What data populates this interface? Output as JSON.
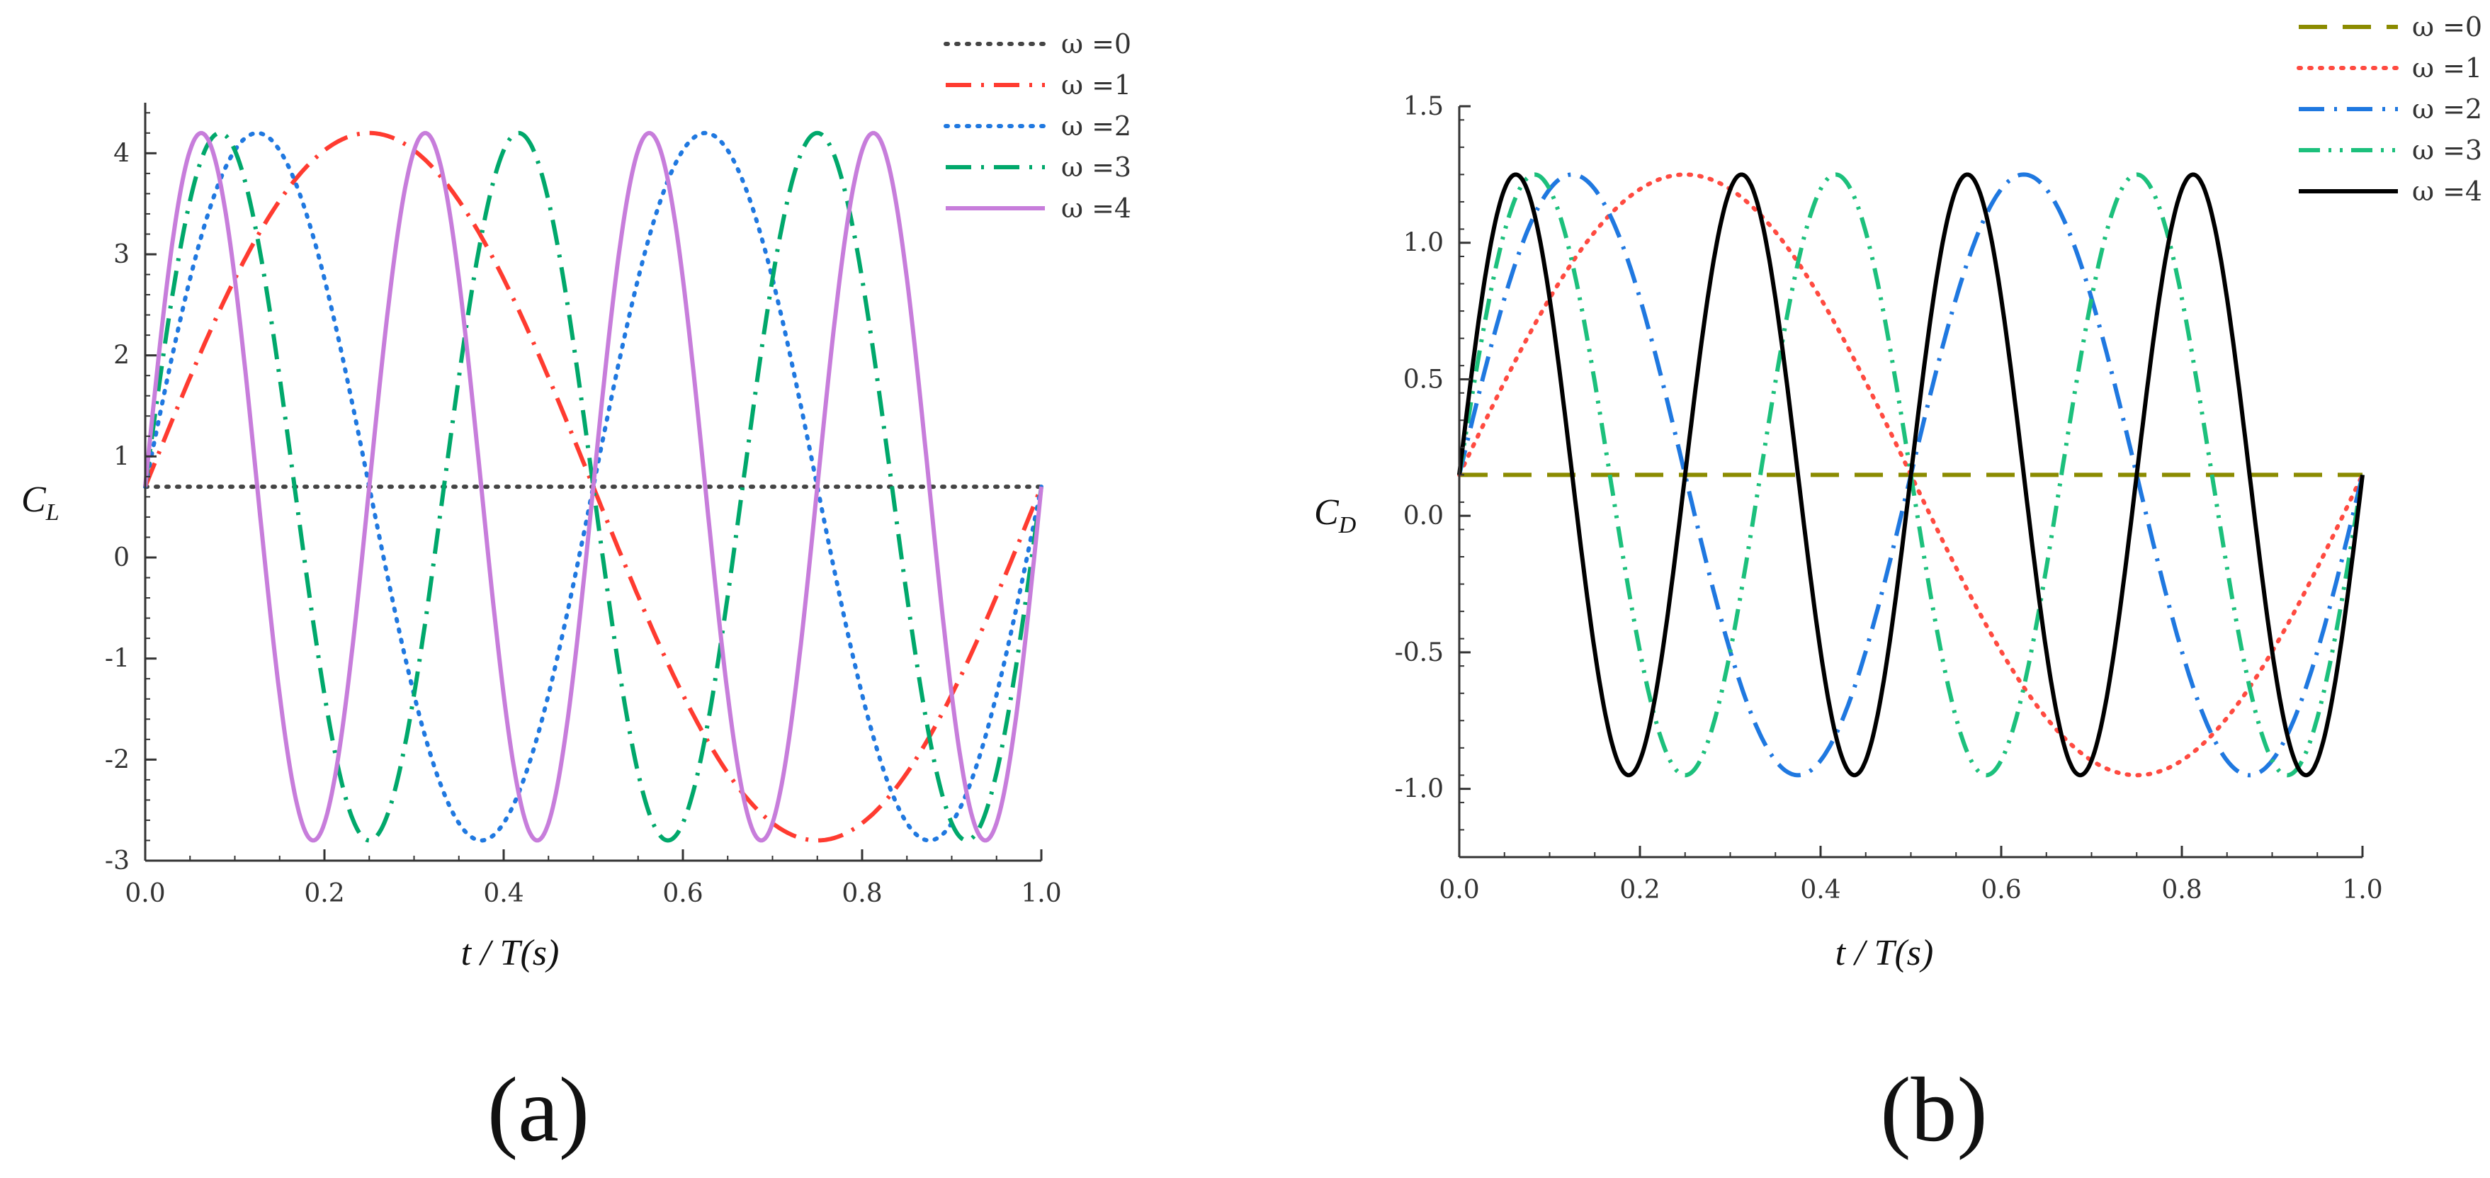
{
  "chart_data": [
    {
      "type": "line",
      "panel_label": "(a)",
      "xlabel": "t / T(s)",
      "ylabel": "C_L",
      "ylabel_main": "C",
      "ylabel_sub": "L",
      "xlim": [
        0.0,
        1.0
      ],
      "ylim": [
        -3,
        4.5
      ],
      "xticks": [
        0.0,
        0.2,
        0.4,
        0.6,
        0.8,
        1.0
      ],
      "xtick_labels": [
        "0.0",
        "0.2",
        "0.4",
        "0.6",
        "0.8",
        "1.0"
      ],
      "yticks": [
        -3,
        -2,
        -1,
        0,
        1,
        2,
        3,
        4
      ],
      "ytick_labels": [
        "-3",
        "-2",
        "-1",
        "0",
        "1",
        "2",
        "3",
        "4"
      ],
      "legend_position": "top-right",
      "series": [
        {
          "name": "ω =0",
          "omega": 0,
          "color": "#444444",
          "dash": "dotted"
        },
        {
          "name": "ω =1",
          "omega": 1,
          "color": "#ff3b30",
          "dash": "dashdot"
        },
        {
          "name": "ω =2",
          "omega": 2,
          "color": "#1f78e0",
          "dash": "dotted"
        },
        {
          "name": "ω =3",
          "omega": 3,
          "color": "#00a86b",
          "dash": "dashdot"
        },
        {
          "name": "ω =4",
          "omega": 4,
          "color": "#c77ddb",
          "dash": "solid"
        }
      ],
      "mean": 0.7,
      "amplitude": 3.5
    },
    {
      "type": "line",
      "panel_label": "(b)",
      "xlabel": "t / T(s)",
      "ylabel": "C_D",
      "ylabel_main": "C",
      "ylabel_sub": "D",
      "xlim": [
        0.0,
        1.0
      ],
      "ylim": [
        -1.25,
        1.5
      ],
      "xticks": [
        0.0,
        0.2,
        0.4,
        0.6,
        0.8,
        1.0
      ],
      "xtick_labels": [
        "0.0",
        "0.2",
        "0.4",
        "0.6",
        "0.8",
        "1.0"
      ],
      "yticks": [
        -1.0,
        -0.5,
        0.0,
        0.5,
        1.0,
        1.5
      ],
      "ytick_labels": [
        "-1.0",
        "-0.5",
        "0.0",
        "0.5",
        "1.0",
        "1.5"
      ],
      "legend_position": "top-right",
      "series": [
        {
          "name": "ω =0",
          "omega": 0,
          "color": "#8b8b00",
          "dash": "dashed"
        },
        {
          "name": "ω =1",
          "omega": 1,
          "color": "#ff4a40",
          "dash": "dotted"
        },
        {
          "name": "ω =2",
          "omega": 2,
          "color": "#1f78e0",
          "dash": "dashdot"
        },
        {
          "name": "ω =3",
          "omega": 3,
          "color": "#1cc07c",
          "dash": "dashdotdot"
        },
        {
          "name": "ω =4",
          "omega": 4,
          "color": "#000000",
          "dash": "solid"
        }
      ],
      "mean": 0.15,
      "amplitude": 1.1
    }
  ]
}
